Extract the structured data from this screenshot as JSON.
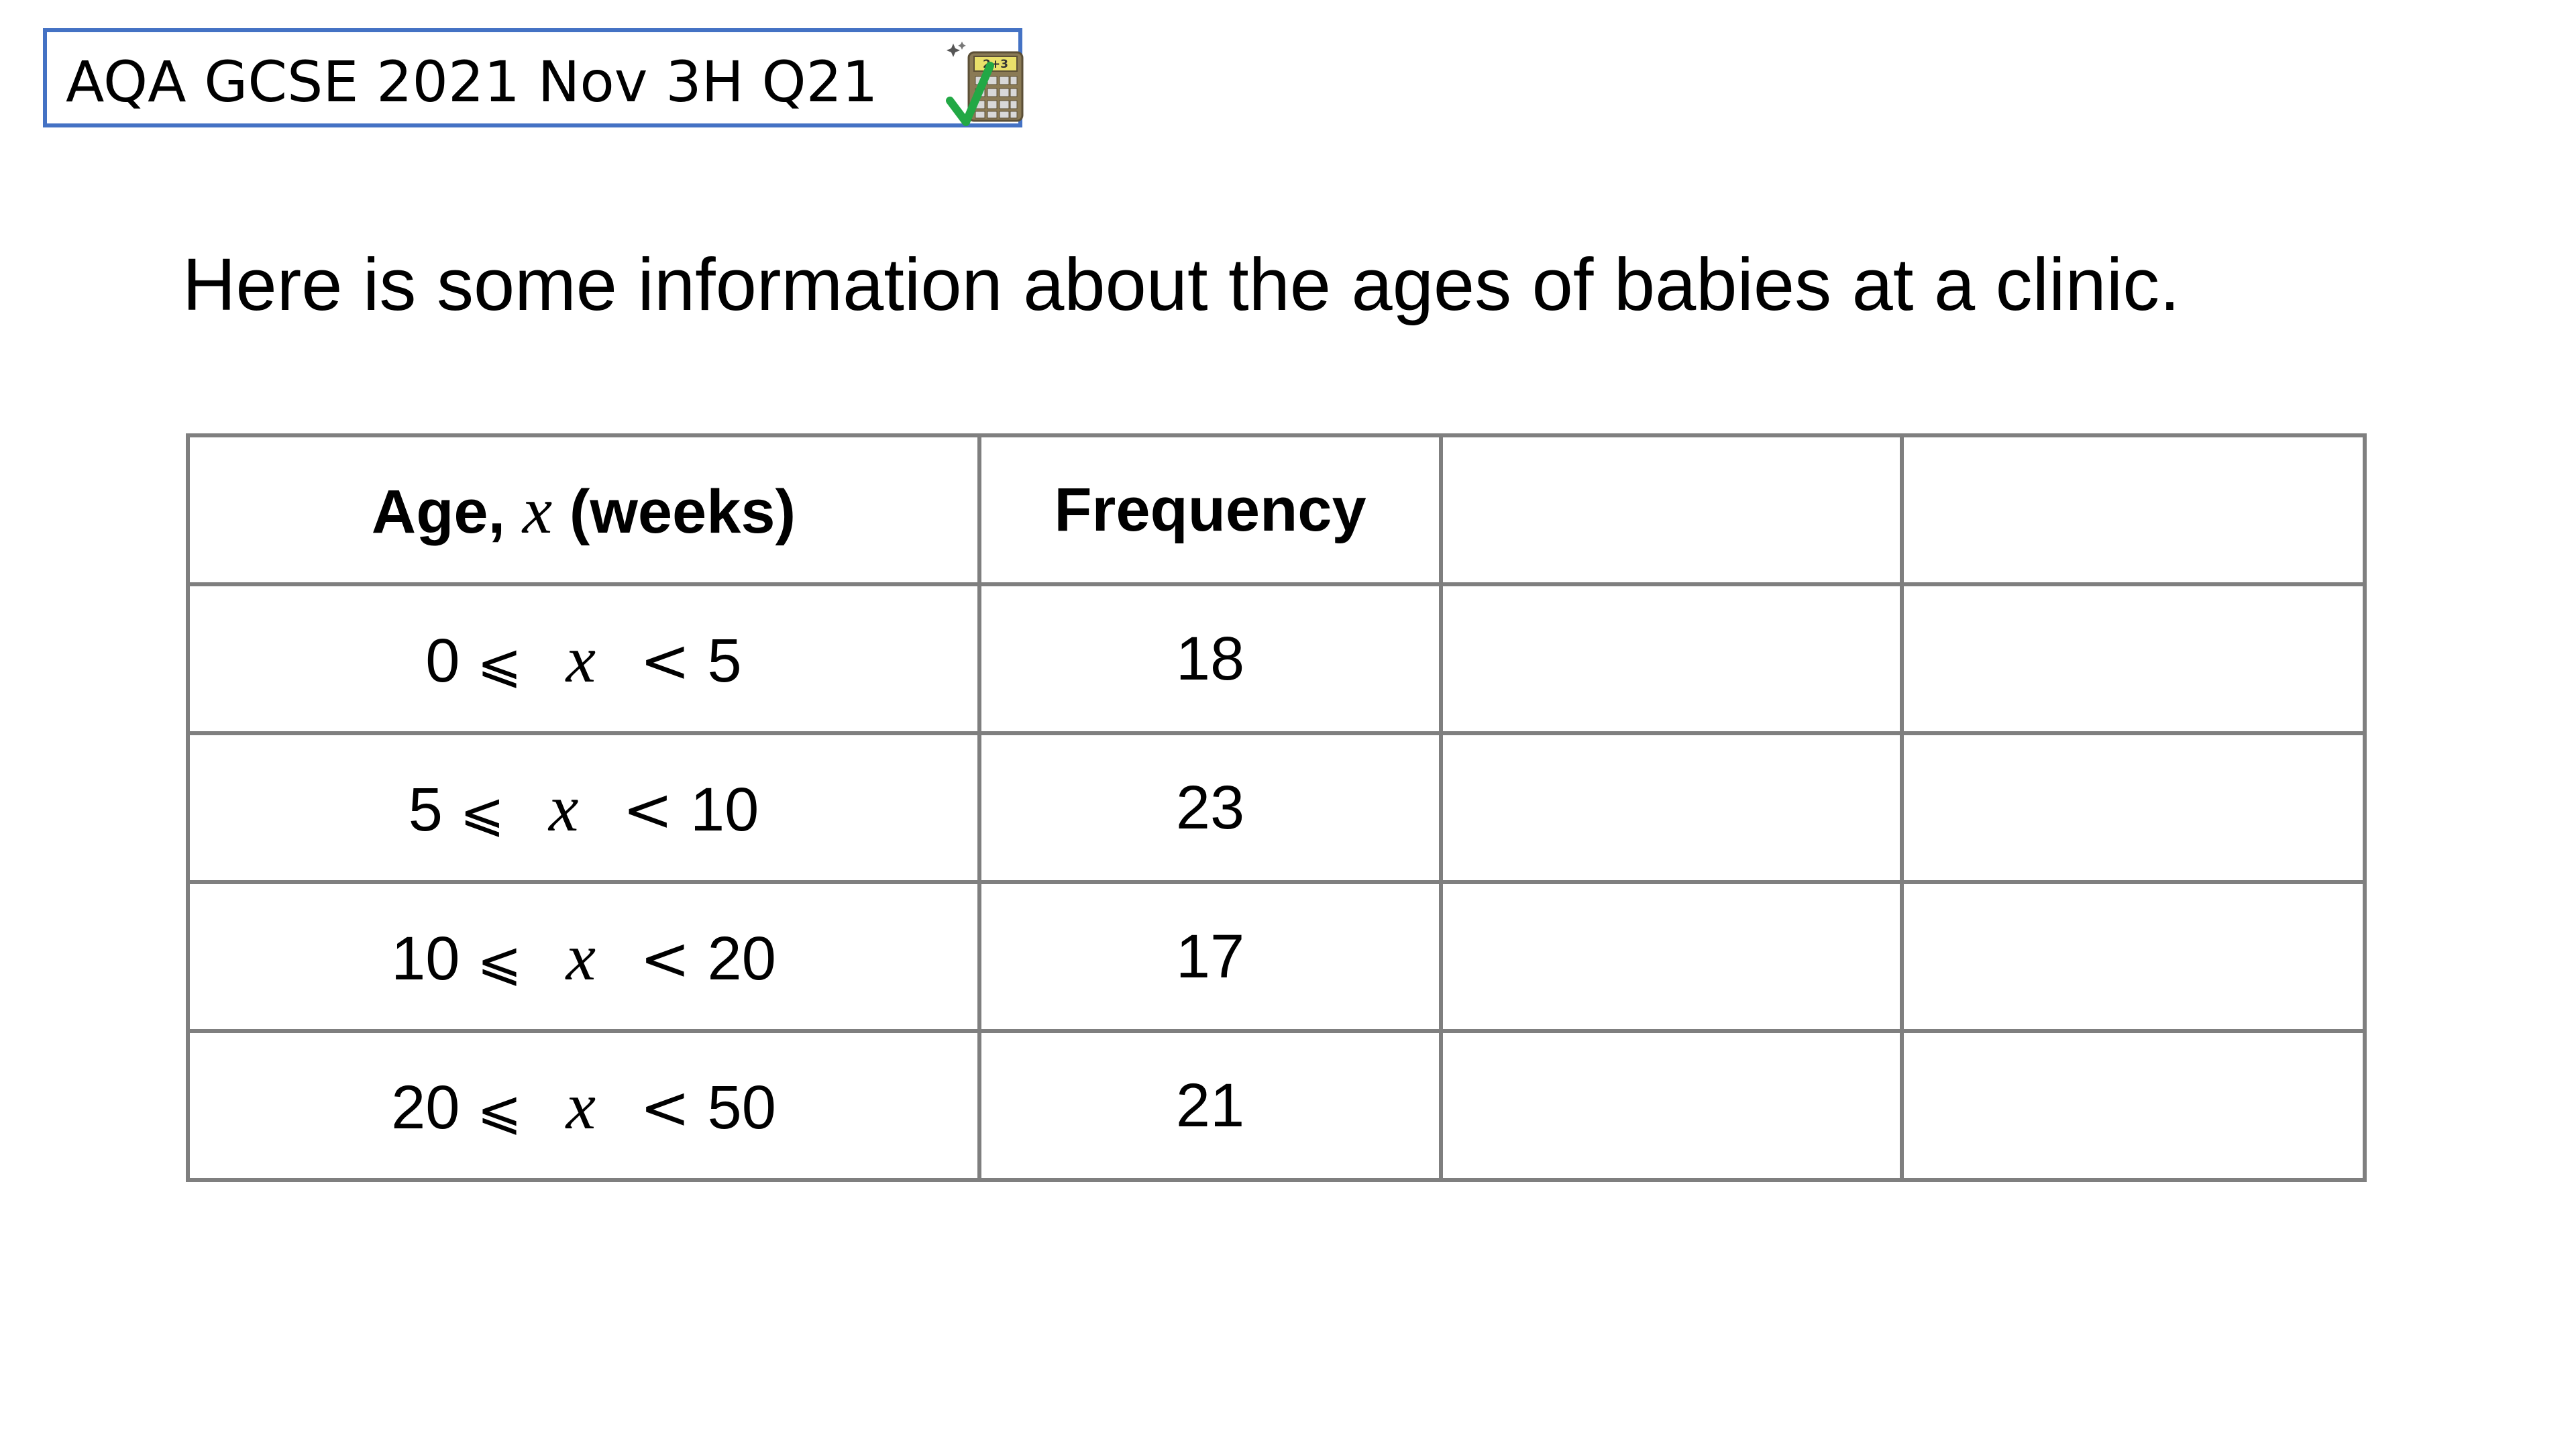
{
  "header": {
    "title": "AQA GCSE 2021 Nov 3H Q21",
    "calculator_icon_label": "2+3",
    "icon": "calculator-allowed-icon",
    "border_color": "#4472c4",
    "check_color": "#22a845"
  },
  "question": {
    "intro": "Here is some information about the ages of babies at a clinic."
  },
  "table": {
    "header": {
      "age_label_prefix": "Age,",
      "age_label_var": "x",
      "age_label_unit": "(weeks)",
      "frequency_label": "Frequency",
      "extra_col_1": "",
      "extra_col_2": ""
    },
    "rows": [
      {
        "lower": "0",
        "leq": "⩽",
        "var": "x",
        "lt": "<",
        "upper": "5",
        "frequency": "18",
        "extra_1": "",
        "extra_2": ""
      },
      {
        "lower": "5",
        "leq": "⩽",
        "var": "x",
        "lt": "<",
        "upper": "10",
        "frequency": "23",
        "extra_1": "",
        "extra_2": ""
      },
      {
        "lower": "10",
        "leq": "⩽",
        "var": "x",
        "lt": "<",
        "upper": "20",
        "frequency": "17",
        "extra_1": "",
        "extra_2": ""
      },
      {
        "lower": "20",
        "leq": "⩽",
        "var": "x",
        "lt": "<",
        "upper": "50",
        "frequency": "21",
        "extra_1": "",
        "extra_2": ""
      }
    ],
    "border_color": "#7f7f7f"
  }
}
